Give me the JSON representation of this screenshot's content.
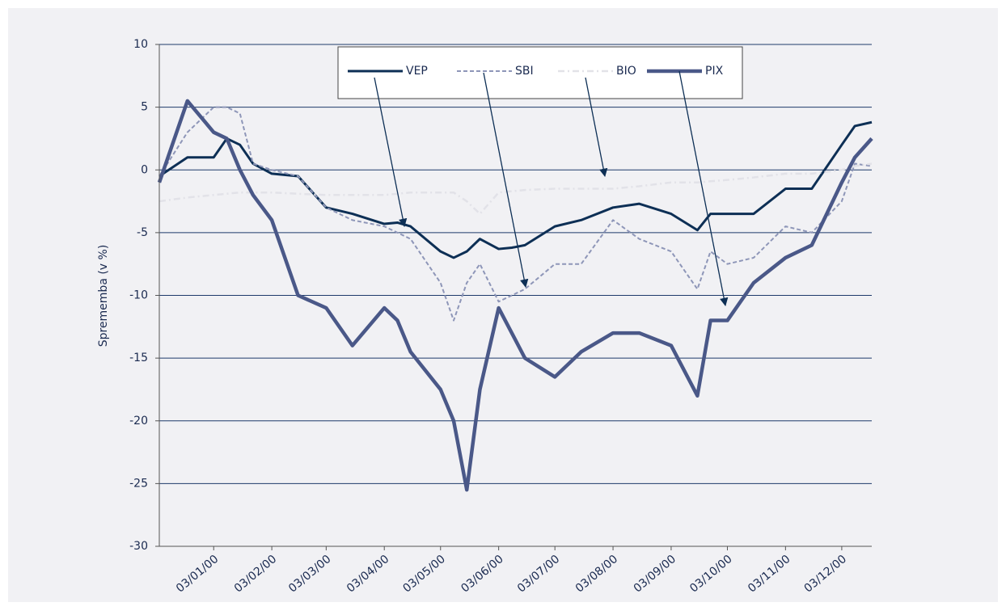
{
  "chart_data": {
    "type": "line",
    "y_label": "Sprememba (v %)",
    "x": [
      "05/12/99",
      "20/12/99",
      "03/01/00",
      "10/01/00",
      "17/01/00",
      "24/01/00",
      "03/02/00",
      "17/02/00",
      "03/03/00",
      "17/03/00",
      "03/04/00",
      "10/04/00",
      "17/04/00",
      "03/05/00",
      "10/05/00",
      "17/05/00",
      "24/05/00",
      "03/06/00",
      "10/06/00",
      "17/06/00",
      "03/07/00",
      "17/07/00",
      "03/08/00",
      "17/08/00",
      "03/09/00",
      "17/09/00",
      "24/09/00",
      "03/10/00",
      "17/10/00",
      "03/11/00",
      "17/11/00",
      "03/12/00",
      "10/12/00",
      "19/12/00"
    ],
    "series": [
      {
        "name": "VEP",
        "color": "#0d2f55",
        "values": [
          -0.5,
          1,
          1,
          2.5,
          2,
          0.5,
          -0.3,
          -0.5,
          -3,
          -3.5,
          -4.3,
          -4.2,
          -4.5,
          -6.5,
          -7,
          -6.5,
          -5.5,
          -6.3,
          -6.2,
          -6,
          -4.5,
          -4,
          -3,
          -2.7,
          -3.5,
          -4.8,
          -3.5,
          -3.5,
          -3.5,
          -1.5,
          -1.5,
          2,
          3.5,
          3.8
        ]
      },
      {
        "name": "SBI",
        "color": "#8e96b8",
        "values": [
          -0.5,
          3,
          5,
          5,
          4.5,
          0.5,
          0,
          -0.5,
          -3,
          -4,
          -4.5,
          -5,
          -5.5,
          -9,
          -12,
          -9,
          -7.5,
          -10.5,
          -10,
          -9.5,
          -7.5,
          -7.5,
          -4,
          -5.5,
          -6.5,
          -9.5,
          -6.5,
          -7.5,
          -7,
          -4.5,
          -5,
          -2.5,
          0.5,
          0.3
        ]
      },
      {
        "name": "BIO",
        "color": "#e2e2e8",
        "values": [
          -2.5,
          -2.2,
          -2,
          -1.9,
          -1.8,
          -1.8,
          -1.8,
          -1.9,
          -2,
          -2,
          -2,
          -1.9,
          -1.8,
          -1.8,
          -1.8,
          -2.5,
          -3.5,
          -1.8,
          -1.7,
          -1.6,
          -1.5,
          -1.5,
          -1.5,
          -1.3,
          -1,
          -1,
          -0.9,
          -0.8,
          -0.6,
          -0.3,
          -0.3,
          0,
          0.3,
          0.5
        ]
      },
      {
        "name": "PIX",
        "color": "#4a5888",
        "values": [
          -1,
          5.5,
          3,
          2.5,
          0,
          -2,
          -4,
          -10,
          -11,
          -14,
          -11,
          -12,
          -14.5,
          -17.5,
          -20,
          -25.5,
          -17.5,
          -11,
          -13,
          -15,
          -16.5,
          -14.5,
          -13,
          -13,
          -14,
          -18,
          -12,
          -12,
          -9,
          -7,
          -6,
          -1,
          1,
          2.5
        ]
      }
    ],
    "xlim": [
      "05/12/99",
      "19/12/00"
    ],
    "xticks": [
      "03/01/00",
      "03/02/00",
      "03/03/00",
      "03/04/00",
      "03/05/00",
      "03/06/00",
      "03/07/00",
      "03/08/00",
      "03/09/00",
      "03/10/00",
      "03/11/00",
      "03/12/00"
    ],
    "ylim": [
      -30,
      10
    ],
    "yticks": [
      -30,
      -25,
      -20,
      -15,
      -10,
      -5,
      0,
      5,
      10
    ],
    "grid": true,
    "legend": "top"
  }
}
